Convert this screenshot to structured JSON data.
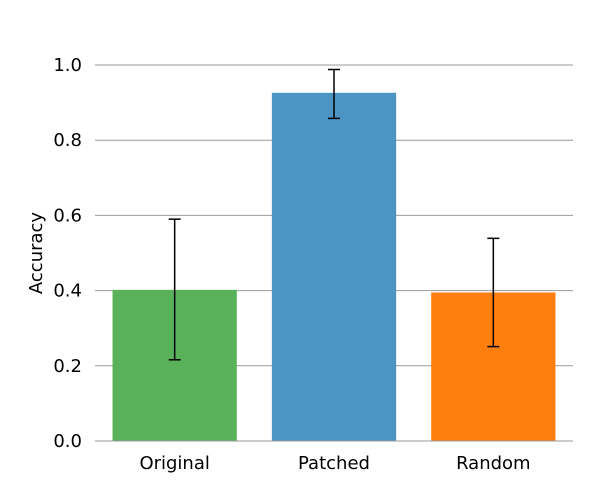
{
  "chart_data": {
    "type": "bar",
    "title": "",
    "xlabel": "",
    "ylabel": "Accuracy",
    "categories": [
      "Original",
      "Patched",
      "Random"
    ],
    "values": [
      0.402,
      0.926,
      0.395
    ],
    "error_low": [
      0.216,
      0.858,
      0.251
    ],
    "error_high": [
      0.59,
      0.988,
      0.539
    ],
    "colors": [
      "#59b259",
      "#4b94c4",
      "#ff7f0e"
    ],
    "ylim": [
      0.0,
      1.0
    ],
    "yticks": [
      0.0,
      0.2,
      0.4,
      0.6,
      0.8,
      1.0
    ],
    "ytick_labels": [
      "0.0",
      "0.2",
      "0.4",
      "0.6",
      "0.8",
      "1.0"
    ],
    "grid": "horizontal",
    "grid_color": "#999999",
    "legend": "none"
  }
}
